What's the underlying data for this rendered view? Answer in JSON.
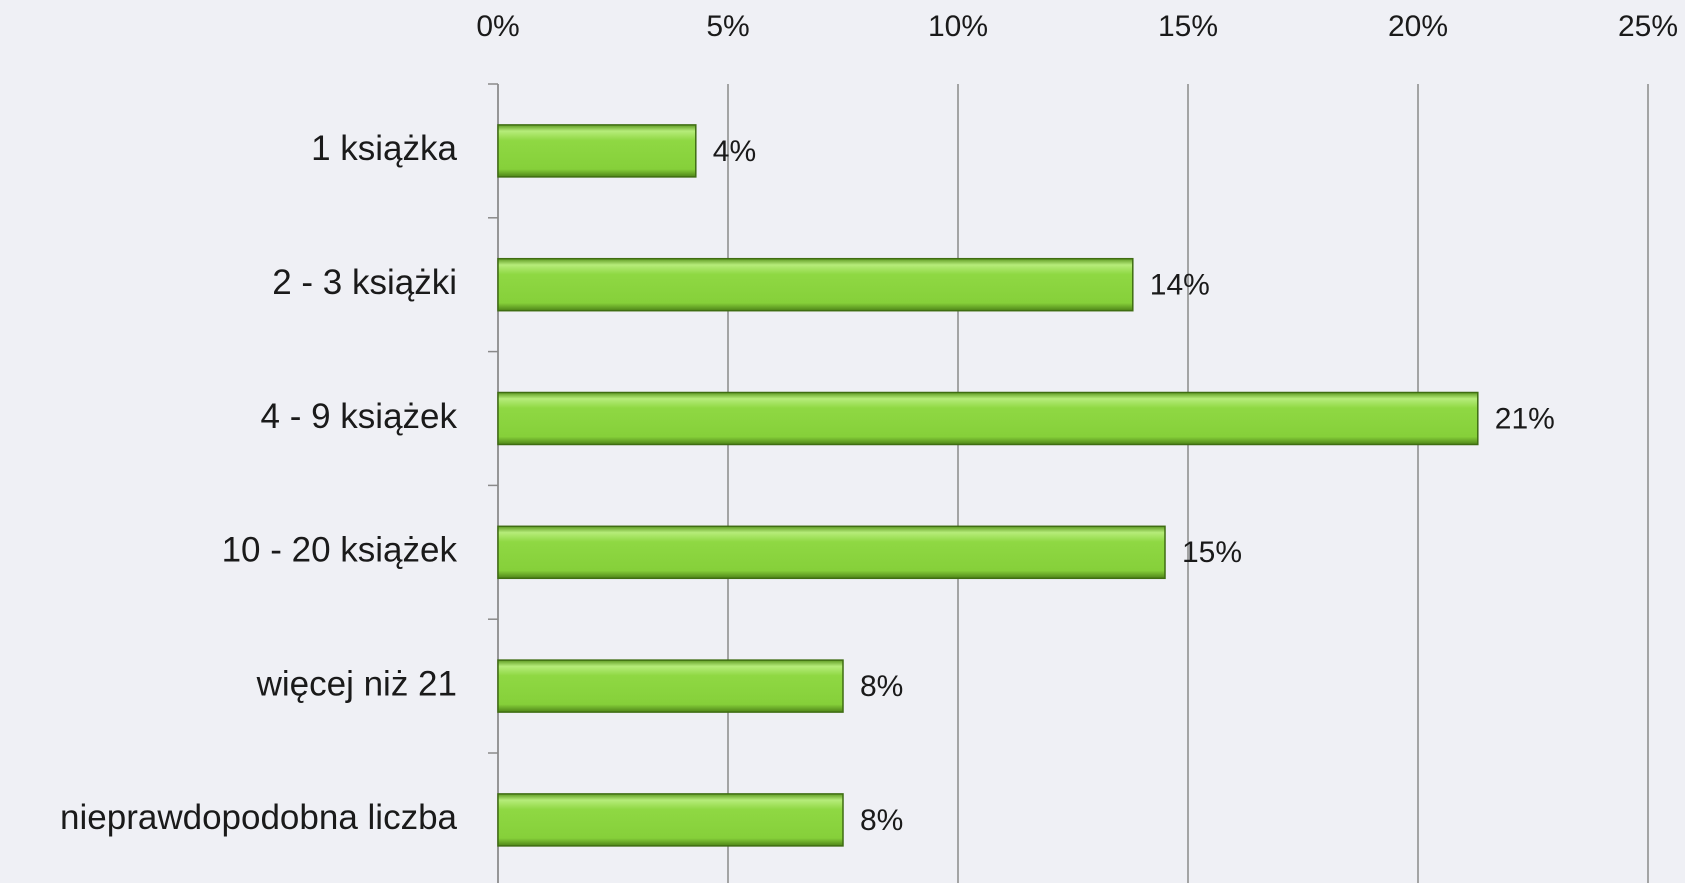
{
  "chart_data": {
    "type": "bar",
    "orientation": "horizontal",
    "categories": [
      "1 książka",
      "2 - 3 książki",
      "4 - 9 książek",
      "10 - 20 książek",
      "więcej niż 21",
      "nieprawdopodobna liczba"
    ],
    "values": [
      4.3,
      13.8,
      21.3,
      14.5,
      7.5,
      7.5
    ],
    "value_labels": [
      "4%",
      "14%",
      "21%",
      "15%",
      "8%",
      "8%"
    ],
    "color": "#8ad43f",
    "xlim": [
      0,
      25
    ],
    "xticks": [
      {
        "value": 0,
        "label": "0%"
      },
      {
        "value": 5,
        "label": "5%"
      },
      {
        "value": 10,
        "label": "10%"
      },
      {
        "value": 15,
        "label": "15%"
      },
      {
        "value": 20,
        "label": "20%"
      },
      {
        "value": 25,
        "label": "25%"
      }
    ],
    "grid": true
  }
}
